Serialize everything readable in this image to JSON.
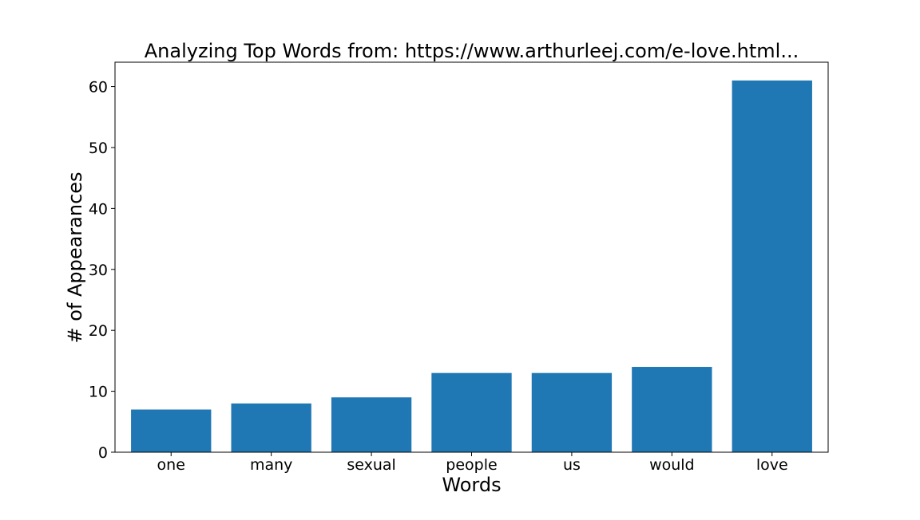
{
  "chart_data": {
    "type": "bar",
    "title": "Analyzing Top Words from: https://www.arthurleej.com/e-love.html...",
    "xlabel": "Words",
    "ylabel": "# of Appearances",
    "categories": [
      "one",
      "many",
      "sexual",
      "people",
      "us",
      "would",
      "love"
    ],
    "values": [
      7,
      8,
      9,
      13,
      13,
      14,
      61
    ],
    "ylim": [
      0,
      64
    ],
    "yticks": [
      0,
      10,
      20,
      30,
      40,
      50,
      60
    ],
    "grid": false,
    "legend": "none",
    "bar_color": "#1f77b4"
  }
}
